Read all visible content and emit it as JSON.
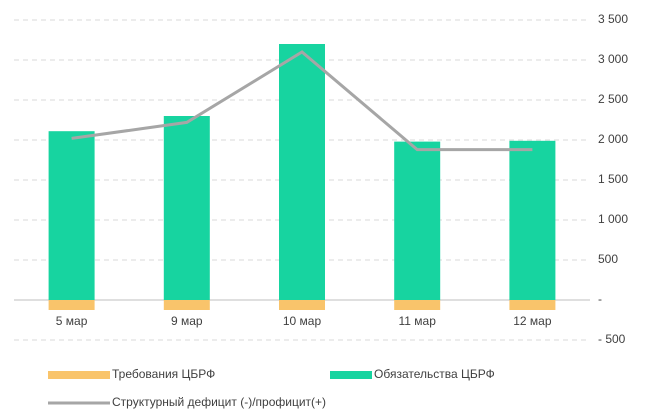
{
  "chart_data": {
    "type": "bar",
    "stacked": true,
    "y_axis_side": "right",
    "grid": true,
    "categories": [
      "5 мар",
      "9 мар",
      "10 мар",
      "11 мар",
      "12 мар"
    ],
    "series": [
      {
        "name": "Требования ЦБРФ",
        "type": "bar",
        "color": "#f9c46b",
        "values": [
          -125,
          -125,
          -125,
          -125,
          -125
        ]
      },
      {
        "name": "Обязательства ЦБРФ",
        "type": "bar",
        "color": "#17d4a0",
        "values": [
          2110,
          2300,
          3200,
          1980,
          1990
        ]
      },
      {
        "name": "Структурный дефицит (-)/профицит(+)",
        "type": "line",
        "color": "#a6a6a6",
        "values": [
          2020,
          2220,
          3100,
          1880,
          1880
        ]
      }
    ],
    "ylim": [
      -500,
      3500
    ],
    "yticks": [
      {
        "value": -500,
        "label": "- 500"
      },
      {
        "value": 0,
        "label": "-"
      },
      500,
      {
        "value": 1000,
        "label": "1 000"
      },
      {
        "value": 1500,
        "label": "1 500"
      },
      {
        "value": 2000,
        "label": "2 000"
      },
      {
        "value": 2500,
        "label": "2 500"
      },
      {
        "value": 3000,
        "label": "3 000"
      },
      {
        "value": 3500,
        "label": "3 500"
      }
    ]
  }
}
